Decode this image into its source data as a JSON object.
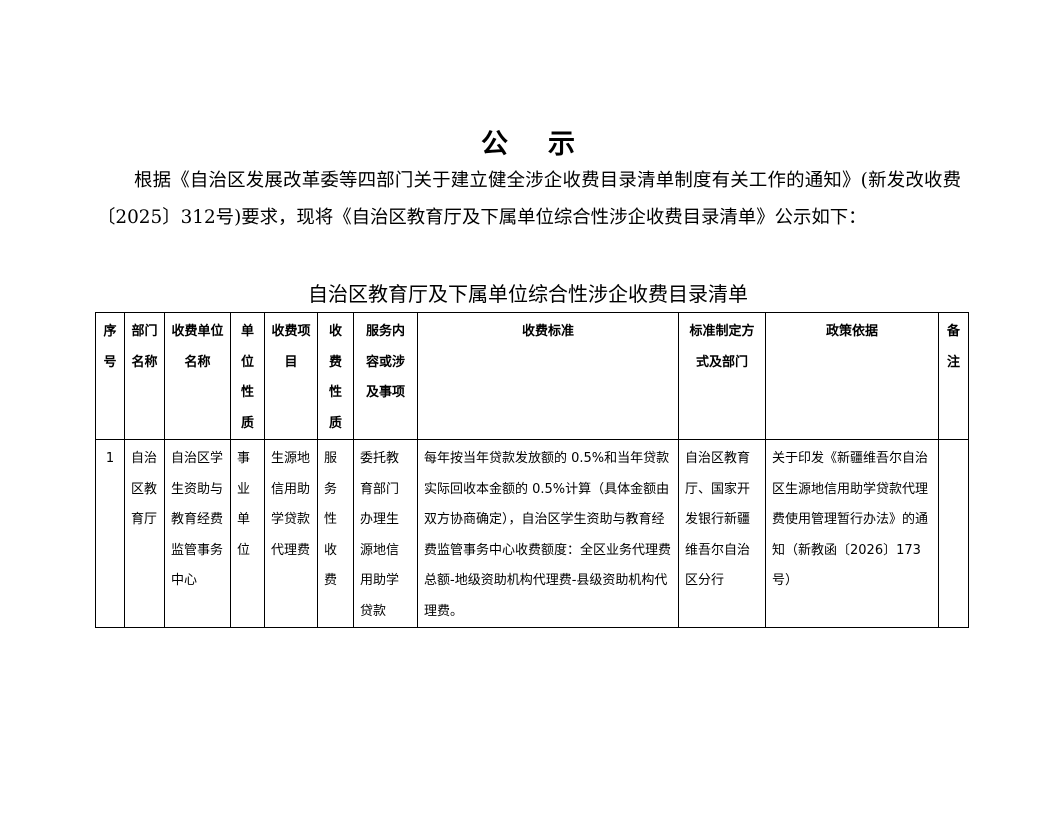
{
  "title": "公示",
  "intro": "根据《自治区发展改革委等四部门关于建立健全涉企收费目录清单制度有关工作的通知》(新发改收费〔2025〕312号)要求，现将《自治区教育厅及下属单位综合性涉企收费目录清单》公示如下：",
  "table_caption": "自治区教育厅及下属单位综合性涉企收费目录清单",
  "headers": [
    "序号",
    "部门名称",
    "收费单位名称",
    "单位性质",
    "收费项目",
    "收费性质",
    "服务内容或涉及事项",
    "收费标准",
    "标准制定方式及部门",
    "政策依据",
    "备注"
  ],
  "rows": [
    [
      "1",
      "自治区教育厅",
      "自治区学生资助与教育经费监管事务中心",
      "事业单位",
      "生源地信用助学贷款代理费",
      "服务性收费",
      "委托教育部门办理生源地信用助学贷款",
      "每年按当年贷款发放额的 0.5%和当年贷款实际回收本金额的 0.5%计算（具体金额由双方协商确定），自治区学生资助与教育经费监管事务中心收费额度：全区业务代理费总额-地级资助机构代理费-县级资助机构代理费。",
      "自治区教育厅、国家开发银行新疆维吾尔自治区分行",
      "关于印发《新疆维吾尔自治区生源地信用助学贷款代理费使用管理暂行办法》的通知（新教函〔2026〕173号）",
      ""
    ]
  ]
}
